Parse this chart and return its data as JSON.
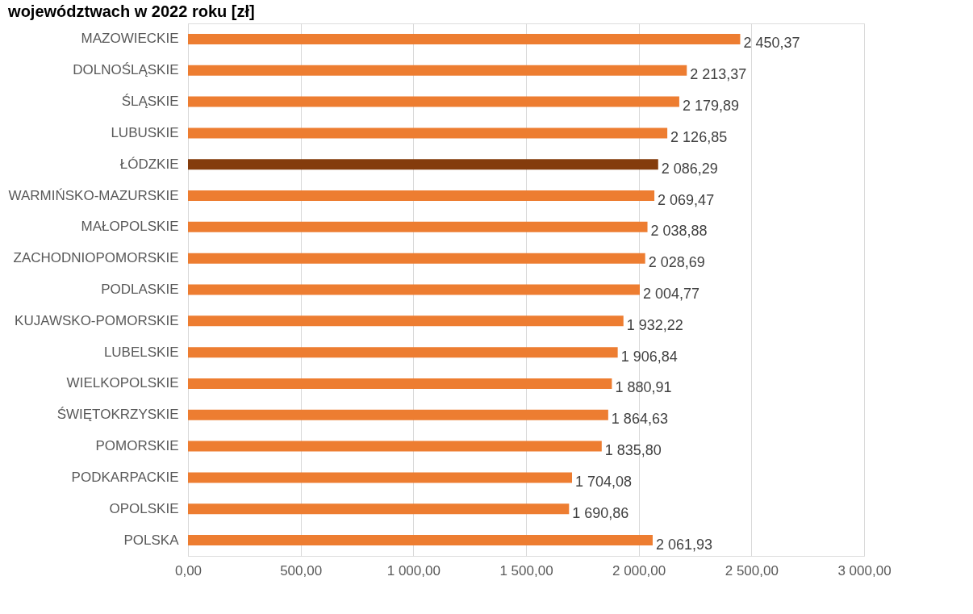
{
  "chart_data": {
    "type": "bar",
    "orientation": "horizontal",
    "title": "województwach w 2022 roku [zł]",
    "categories": [
      "MAZOWIECKIE",
      "DOLNOŚLĄSKIE",
      "ŚLĄSKIE",
      "LUBUSKIE",
      "ŁÓDZKIE",
      "WARMIŃSKO-MAZURSKIE",
      "MAŁOPOLSKIE",
      "ZACHODNIOPOMORSKIE",
      "PODLASKIE",
      "KUJAWSKO-POMORSKIE",
      "LUBELSKIE",
      "WIELKOPOLSKIE",
      "ŚWIĘTOKRZYSKIE",
      "POMORSKIE",
      "PODKARPACKIE",
      "OPOLSKIE",
      "POLSKA"
    ],
    "values": [
      2450.37,
      2213.37,
      2179.89,
      2126.85,
      2086.29,
      2069.47,
      2038.88,
      2028.69,
      2004.77,
      1932.22,
      1906.84,
      1880.91,
      1864.63,
      1835.8,
      1704.08,
      1690.86,
      2061.93
    ],
    "colors": [
      "#ed7d31",
      "#ed7d31",
      "#ed7d31",
      "#ed7d31",
      "#843c0c",
      "#ed7d31",
      "#ed7d31",
      "#ed7d31",
      "#ed7d31",
      "#ed7d31",
      "#ed7d31",
      "#ed7d31",
      "#ed7d31",
      "#ed7d31",
      "#ed7d31",
      "#ed7d31",
      "#ed7d31"
    ],
    "value_labels": [
      "2 450,37",
      "2 213,37",
      "2 179,89",
      "2 126,85",
      "2 086,29",
      "2 069,47",
      "2 038,88",
      "2 028,69",
      "2 004,77",
      "1 932,22",
      "1 906,84",
      "1 880,91",
      "1 864,63",
      "1 835,80",
      "1 704,08",
      "1 690,86",
      "2 061,93"
    ],
    "xlim": [
      0,
      3000
    ],
    "xticks": [
      {
        "value": 0,
        "label": "0,00"
      },
      {
        "value": 500,
        "label": "500,00"
      },
      {
        "value": 1000,
        "label": "1 000,00"
      },
      {
        "value": 1500,
        "label": "1 500,00"
      },
      {
        "value": 2000,
        "label": "2 000,00"
      },
      {
        "value": 2500,
        "label": "2 500,00"
      },
      {
        "value": 3000,
        "label": "3 000,00"
      }
    ],
    "grid": "x"
  }
}
